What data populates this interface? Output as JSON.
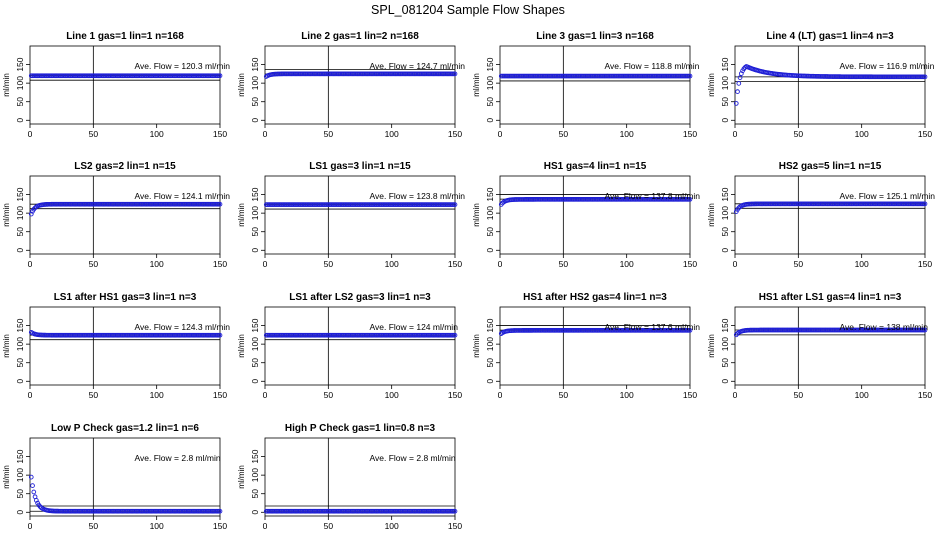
{
  "title": "SPL_081204  Sample Flow Shapes",
  "series_color": "#1f1fd6",
  "chart_data": [
    {
      "type": "scatter",
      "title": "Line 1 gas=1 lin=1 n=168",
      "ylabel": "ml/min",
      "xlim": [
        0,
        150
      ],
      "ylim": [
        -10,
        200
      ],
      "x_ticks": [
        0,
        50,
        100,
        150
      ],
      "y_ticks": [
        0,
        50,
        100,
        150
      ],
      "vline_x": 50,
      "hlines": [
        120.3,
        108
      ],
      "annotation": "Ave. Flow =  120.3  ml/min",
      "shape": "flat",
      "level": 120
    },
    {
      "type": "scatter",
      "title": "Line 2 gas=1 lin=2 n=168",
      "ylabel": "ml/min",
      "xlim": [
        0,
        150
      ],
      "ylim": [
        -10,
        200
      ],
      "x_ticks": [
        0,
        50,
        100,
        150
      ],
      "y_ticks": [
        0,
        50,
        100,
        150
      ],
      "vline_x": 50,
      "hlines": [
        124.7,
        137
      ],
      "annotation": "Ave. Flow =  124.7  ml/min",
      "shape": "ramp",
      "start": 115,
      "level": 125
    },
    {
      "type": "scatter",
      "title": "Line 3 gas=1 lin=3 n=168",
      "ylabel": "ml/min",
      "xlim": [
        0,
        150
      ],
      "ylim": [
        -10,
        200
      ],
      "x_ticks": [
        0,
        50,
        100,
        150
      ],
      "y_ticks": [
        0,
        50,
        100,
        150
      ],
      "vline_x": 50,
      "hlines": [
        118.8,
        106
      ],
      "annotation": "Ave. Flow =  118.8  ml/min",
      "shape": "flat",
      "level": 119
    },
    {
      "type": "scatter",
      "title": "Line 4 (LT) gas=1 lin=4 n=3",
      "ylabel": "ml/min",
      "xlim": [
        0,
        150
      ],
      "ylim": [
        -10,
        200
      ],
      "x_ticks": [
        0,
        50,
        100,
        150
      ],
      "y_ticks": [
        0,
        50,
        100,
        150
      ],
      "vline_x": 50,
      "hlines": [
        116.9,
        104
      ],
      "annotation": "Ave. Flow =  116.9  ml/min",
      "shape": "overshoot",
      "start": 0,
      "peak": 145,
      "level": 117
    },
    {
      "type": "scatter",
      "title": "LS2 gas=2 lin=1 n=15",
      "ylabel": "ml/min",
      "xlim": [
        0,
        150
      ],
      "ylim": [
        -10,
        200
      ],
      "x_ticks": [
        0,
        50,
        100,
        150
      ],
      "y_ticks": [
        0,
        50,
        100,
        150
      ],
      "vline_x": 50,
      "hlines": [
        124.1,
        112
      ],
      "annotation": "Ave. Flow =  124.1  ml/min",
      "shape": "dip",
      "start": 115,
      "dipv": 105,
      "level": 124
    },
    {
      "type": "scatter",
      "title": "LS1 gas=3 lin=1 n=15",
      "ylabel": "ml/min",
      "xlim": [
        0,
        150
      ],
      "ylim": [
        -10,
        200
      ],
      "x_ticks": [
        0,
        50,
        100,
        150
      ],
      "y_ticks": [
        0,
        50,
        100,
        150
      ],
      "vline_x": 50,
      "hlines": [
        123.8,
        111
      ],
      "annotation": "Ave. Flow =  123.8  ml/min",
      "shape": "flat",
      "level": 123
    },
    {
      "type": "scatter",
      "title": "HS1 gas=4 lin=1 n=15",
      "ylabel": "ml/min",
      "xlim": [
        0,
        150
      ],
      "ylim": [
        -10,
        200
      ],
      "x_ticks": [
        0,
        50,
        100,
        150
      ],
      "y_ticks": [
        0,
        50,
        100,
        150
      ],
      "vline_x": 50,
      "hlines": [
        137.8,
        150
      ],
      "annotation": "Ave. Flow =  137.8  ml/min",
      "shape": "ramp",
      "start": 118,
      "level": 137
    },
    {
      "type": "scatter",
      "title": "HS2 gas=5 lin=1 n=15",
      "ylabel": "ml/min",
      "xlim": [
        0,
        150
      ],
      "ylim": [
        -10,
        200
      ],
      "x_ticks": [
        0,
        50,
        100,
        150
      ],
      "y_ticks": [
        0,
        50,
        100,
        150
      ],
      "vline_x": 50,
      "hlines": [
        125.1,
        113
      ],
      "annotation": "Ave. Flow =  125.1  ml/min",
      "shape": "dip",
      "start": 118,
      "dipv": 110,
      "level": 125
    },
    {
      "type": "scatter",
      "title": "LS1 after HS1 gas=3 lin=1 n=3",
      "ylabel": "ml/min",
      "xlim": [
        0,
        150
      ],
      "ylim": [
        -10,
        200
      ],
      "x_ticks": [
        0,
        50,
        100,
        150
      ],
      "y_ticks": [
        0,
        50,
        100,
        150
      ],
      "vline_x": 50,
      "hlines": [
        124.3,
        112
      ],
      "annotation": "Ave. Flow =  124.3  ml/min",
      "shape": "decay",
      "start": 135,
      "level": 124
    },
    {
      "type": "scatter",
      "title": "LS1 after LS2 gas=3 lin=1 n=3",
      "ylabel": "ml/min",
      "xlim": [
        0,
        150
      ],
      "ylim": [
        -10,
        200
      ],
      "x_ticks": [
        0,
        50,
        100,
        150
      ],
      "y_ticks": [
        0,
        50,
        100,
        150
      ],
      "vline_x": 50,
      "hlines": [
        124,
        112
      ],
      "annotation": "Ave. Flow =  124  ml/min",
      "shape": "flat",
      "level": 124
    },
    {
      "type": "scatter",
      "title": "HS1 after HS2 gas=4 lin=1 n=3",
      "ylabel": "ml/min",
      "xlim": [
        0,
        150
      ],
      "ylim": [
        -10,
        200
      ],
      "x_ticks": [
        0,
        50,
        100,
        150
      ],
      "y_ticks": [
        0,
        50,
        100,
        150
      ],
      "vline_x": 50,
      "hlines": [
        137.6,
        150
      ],
      "annotation": "Ave. Flow =  137.6  ml/min",
      "shape": "ramp",
      "start": 125,
      "level": 137
    },
    {
      "type": "scatter",
      "title": "HS1 after LS1 gas=4 lin=1 n=3",
      "ylabel": "ml/min",
      "xlim": [
        0,
        150
      ],
      "ylim": [
        -10,
        200
      ],
      "x_ticks": [
        0,
        50,
        100,
        150
      ],
      "y_ticks": [
        0,
        50,
        100,
        150
      ],
      "vline_x": 50,
      "hlines": [
        138,
        125
      ],
      "annotation": "Ave. Flow =  138  ml/min",
      "shape": "ramp",
      "start": 120,
      "level": 138
    },
    {
      "type": "scatter",
      "title": "Low P Check gas=1.2 lin=1 n=6",
      "ylabel": "ml/min",
      "xlim": [
        0,
        150
      ],
      "ylim": [
        -10,
        200
      ],
      "x_ticks": [
        0,
        50,
        100,
        150
      ],
      "y_ticks": [
        0,
        50,
        100,
        150
      ],
      "vline_x": 50,
      "hlines": [
        2.8,
        17
      ],
      "annotation": "Ave. Flow =  2.8  ml/min",
      "shape": "falloff",
      "start": 125,
      "level": 2.8
    },
    {
      "type": "scatter",
      "title": "High P Check gas=1 lin=0.8 n=3",
      "ylabel": "ml/min",
      "xlim": [
        0,
        150
      ],
      "ylim": [
        -10,
        200
      ],
      "x_ticks": [
        0,
        50,
        100,
        150
      ],
      "y_ticks": [
        0,
        50,
        100,
        150
      ],
      "vline_x": 50,
      "hlines": [
        2.8,
        17
      ],
      "annotation": "Ave. Flow =  2.8  ml/min",
      "shape": "flat",
      "level": 2.8
    }
  ]
}
